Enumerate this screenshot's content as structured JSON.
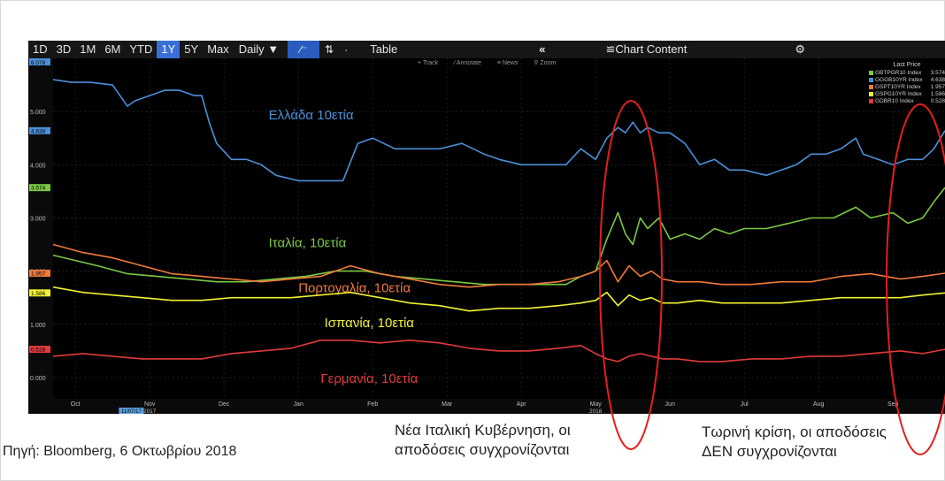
{
  "toolbar": {
    "ranges": [
      "1D",
      "3D",
      "1M",
      "6M",
      "YTD",
      "1Y",
      "5Y",
      "Max"
    ],
    "active_range": "1Y",
    "interval": "Daily ▼",
    "table_label": "Table",
    "collapse_label": "«",
    "chart_content_label": "Chart Content",
    "settings_icon": "gear-icon"
  },
  "subtoolbar": {
    "track": "Track",
    "annotate": "Annotate",
    "news": "News",
    "zoom": "Zoom"
  },
  "legend": {
    "title": "Last Price",
    "rows": [
      {
        "name": "GBTPGR10 Index",
        "value": "3.574",
        "color": "#7ac943"
      },
      {
        "name": "GGGB10YR Index",
        "value": "4.638",
        "color": "#4a90d9"
      },
      {
        "name": "GSPT10YR Index",
        "value": "1.957",
        "color": "#f07a3a"
      },
      {
        "name": "GSPG10YR Index",
        "value": "1.586",
        "color": "#f2f230"
      },
      {
        "name": "GDBR10 Index",
        "value": "0.528",
        "color": "#e33a3a"
      }
    ]
  },
  "highlights": {
    "italy_label": "Νέα Ιταλική Κυβέρνηση, οι αποδόσεις συγχρονίζονται",
    "now_label": "Τωρινή κρίση, οι αποδόσεις ΔΕΝ συγχρονίζονται"
  },
  "captions": {
    "source": "Πηγή: Bloomberg, 6 Οκτωβρίου 2018",
    "italy_line1": "Νέα Ιταλική Κυβέρνηση, οι",
    "italy_line2": "αποδόσεις συγχρονίζονται",
    "now_line1": "Τωρινή κρίση, οι αποδόσεις",
    "now_line2": "ΔΕΝ συγχρονίζονται"
  },
  "colors": {
    "background": "#000000",
    "ellipse": "#e41e1e",
    "axis_text": "#bfbfbf"
  },
  "chart_data": {
    "type": "line",
    "x_labels": [
      "Oct",
      "Nov",
      "Dec",
      "Jan",
      "Feb",
      "Mar",
      "Apr",
      "May",
      "Jun",
      "Jul",
      "Aug",
      "Sep"
    ],
    "x_positions": [
      0.3,
      1.3,
      2.3,
      3.3,
      4.3,
      5.3,
      6.3,
      7.3,
      8.3,
      9.3,
      10.3,
      11.3
    ],
    "year_labels": [
      {
        "at": 1.3,
        "text": "2017"
      },
      {
        "at": 7.3,
        "text": "2018"
      }
    ],
    "start_date_label": "11/07/17",
    "xlim": [
      0,
      12
    ],
    "ylim": [
      -0.4,
      6.0
    ],
    "y_ticks": [
      0.0,
      1.0,
      2.0,
      3.0,
      4.0,
      5.0
    ],
    "y_tick_labels": [
      "0.000",
      "1.000",
      "2.000",
      "3.000",
      "4.000",
      "5.000"
    ],
    "top_label": "6.078",
    "grid": true,
    "series": [
      {
        "name": "GGGB10YR Index",
        "label": "Ελλάδα 10ετία",
        "color": "#4a90d9",
        "last": "4.638",
        "x": [
          0,
          0.25,
          0.5,
          0.8,
          1.0,
          1.1,
          1.3,
          1.5,
          1.7,
          1.9,
          2.0,
          2.1,
          2.2,
          2.4,
          2.6,
          2.8,
          3.0,
          3.3,
          3.6,
          3.9,
          4.1,
          4.3,
          4.6,
          4.9,
          5.2,
          5.5,
          5.8,
          6.0,
          6.3,
          6.6,
          6.9,
          7.1,
          7.3,
          7.45,
          7.6,
          7.7,
          7.8,
          7.9,
          8.0,
          8.15,
          8.3,
          8.5,
          8.7,
          8.9,
          9.1,
          9.3,
          9.6,
          9.8,
          10.0,
          10.2,
          10.4,
          10.6,
          10.8,
          10.9,
          11.1,
          11.3,
          11.5,
          11.7,
          11.85,
          12.0
        ],
        "y": [
          5.6,
          5.55,
          5.55,
          5.5,
          5.1,
          5.2,
          5.3,
          5.4,
          5.4,
          5.3,
          5.3,
          4.8,
          4.4,
          4.1,
          4.1,
          4.0,
          3.8,
          3.7,
          3.7,
          3.7,
          4.4,
          4.5,
          4.3,
          4.3,
          4.3,
          4.4,
          4.2,
          4.1,
          4.0,
          4.0,
          4.0,
          4.3,
          4.1,
          4.5,
          4.7,
          4.6,
          4.8,
          4.6,
          4.7,
          4.6,
          4.6,
          4.4,
          4.0,
          4.1,
          3.9,
          3.9,
          3.8,
          3.9,
          4.0,
          4.2,
          4.2,
          4.3,
          4.5,
          4.2,
          4.1,
          4.0,
          4.1,
          4.1,
          4.3,
          4.64
        ]
      },
      {
        "name": "GBTPGR10 Index",
        "label": "Ιταλία, 10ετία",
        "color": "#7ac943",
        "last": "3.574",
        "x": [
          0,
          0.3,
          0.6,
          1.0,
          1.4,
          1.8,
          2.2,
          2.6,
          3.0,
          3.4,
          3.8,
          4.2,
          4.6,
          5.0,
          5.4,
          5.8,
          6.2,
          6.6,
          6.9,
          7.1,
          7.3,
          7.45,
          7.6,
          7.7,
          7.8,
          7.9,
          8.0,
          8.15,
          8.3,
          8.5,
          8.7,
          8.9,
          9.1,
          9.3,
          9.6,
          9.9,
          10.2,
          10.5,
          10.8,
          11.0,
          11.3,
          11.5,
          11.7,
          11.85,
          12.0
        ],
        "y": [
          2.3,
          2.2,
          2.1,
          1.95,
          1.9,
          1.85,
          1.8,
          1.8,
          1.85,
          1.9,
          2.0,
          2.0,
          1.9,
          1.85,
          1.8,
          1.75,
          1.75,
          1.75,
          1.75,
          1.9,
          2.0,
          2.6,
          3.1,
          2.7,
          2.5,
          3.0,
          2.8,
          3.0,
          2.6,
          2.7,
          2.6,
          2.8,
          2.7,
          2.8,
          2.8,
          2.9,
          3.0,
          3.0,
          3.2,
          3.0,
          3.1,
          2.9,
          3.0,
          3.3,
          3.57
        ]
      },
      {
        "name": "GSPT10YR Index",
        "label": "Πορτογαλία, 10ετία",
        "color": "#f07a3a",
        "last": "1.957",
        "x": [
          0,
          0.4,
          0.8,
          1.2,
          1.6,
          2.0,
          2.4,
          2.8,
          3.2,
          3.6,
          4.0,
          4.4,
          4.8,
          5.2,
          5.6,
          6.0,
          6.4,
          6.8,
          7.1,
          7.3,
          7.45,
          7.6,
          7.75,
          7.9,
          8.05,
          8.2,
          8.4,
          8.7,
          9.0,
          9.4,
          9.8,
          10.2,
          10.6,
          11.0,
          11.4,
          11.7,
          12.0
        ],
        "y": [
          2.5,
          2.35,
          2.25,
          2.1,
          1.95,
          1.9,
          1.85,
          1.8,
          1.85,
          1.9,
          2.1,
          1.95,
          1.85,
          1.75,
          1.7,
          1.75,
          1.75,
          1.8,
          1.9,
          2.0,
          2.2,
          1.8,
          2.1,
          1.9,
          2.0,
          1.85,
          1.8,
          1.8,
          1.75,
          1.75,
          1.8,
          1.8,
          1.9,
          1.95,
          1.85,
          1.9,
          1.96
        ]
      },
      {
        "name": "GSPG10YR Index",
        "label": "Ισπανία, 10ετία",
        "color": "#f2f230",
        "last": "1.586",
        "x": [
          0,
          0.4,
          0.8,
          1.2,
          1.6,
          2.0,
          2.4,
          2.8,
          3.2,
          3.6,
          4.0,
          4.4,
          4.8,
          5.2,
          5.6,
          6.0,
          6.4,
          6.8,
          7.1,
          7.3,
          7.45,
          7.6,
          7.75,
          7.9,
          8.05,
          8.2,
          8.4,
          8.7,
          9.0,
          9.4,
          9.8,
          10.2,
          10.6,
          11.0,
          11.4,
          11.7,
          12.0
        ],
        "y": [
          1.7,
          1.6,
          1.55,
          1.5,
          1.45,
          1.45,
          1.5,
          1.5,
          1.5,
          1.55,
          1.6,
          1.5,
          1.4,
          1.35,
          1.25,
          1.3,
          1.3,
          1.35,
          1.4,
          1.45,
          1.6,
          1.35,
          1.55,
          1.45,
          1.5,
          1.4,
          1.4,
          1.45,
          1.4,
          1.4,
          1.4,
          1.45,
          1.5,
          1.5,
          1.5,
          1.55,
          1.59
        ]
      },
      {
        "name": "GDBR10 Index",
        "label": "Γερμανία, 10ετία",
        "color": "#e33a3a",
        "last": "0.528",
        "x": [
          0,
          0.4,
          0.8,
          1.2,
          1.6,
          2.0,
          2.4,
          2.8,
          3.2,
          3.6,
          4.0,
          4.4,
          4.8,
          5.2,
          5.6,
          6.0,
          6.4,
          6.8,
          7.1,
          7.3,
          7.45,
          7.6,
          7.75,
          7.9,
          8.05,
          8.2,
          8.4,
          8.7,
          9.0,
          9.4,
          9.8,
          10.2,
          10.6,
          11.0,
          11.4,
          11.7,
          12.0
        ],
        "y": [
          0.4,
          0.45,
          0.4,
          0.35,
          0.35,
          0.35,
          0.45,
          0.5,
          0.55,
          0.7,
          0.7,
          0.65,
          0.7,
          0.65,
          0.55,
          0.5,
          0.5,
          0.55,
          0.6,
          0.45,
          0.35,
          0.3,
          0.4,
          0.45,
          0.4,
          0.35,
          0.35,
          0.3,
          0.3,
          0.35,
          0.35,
          0.4,
          0.4,
          0.45,
          0.5,
          0.45,
          0.53
        ]
      }
    ]
  }
}
